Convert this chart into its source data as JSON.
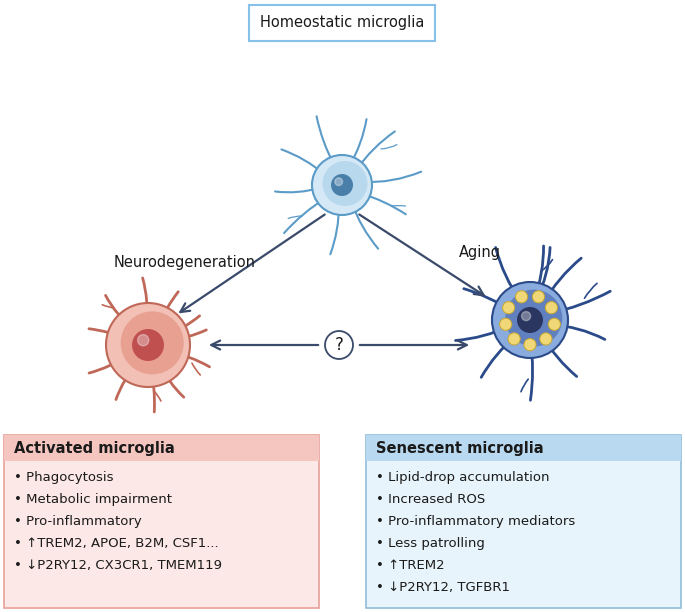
{
  "bg_color": "#ffffff",
  "title_box_text": "Homeostatic microglia",
  "left_label": "Neurodegeneration",
  "right_label": "Aging",
  "left_box_title": "Activated microglia",
  "left_box_bg": "#fce8e6",
  "left_box_header_bg": "#f5c6c0",
  "left_box_border": "#e8a09a",
  "left_box_items": [
    "• Phagocytosis",
    "• Metabolic impairment",
    "• Pro-inflammatory",
    "• ↑TREM2, APOE, B2M, CSF1...",
    "• ↓P2RY12, CX3CR1, TMEM119"
  ],
  "right_box_title": "Senescent microglia",
  "right_box_bg": "#e8f4fb",
  "right_box_header_bg": "#b8d9ef",
  "right_box_border": "#90bdd9",
  "right_box_items": [
    "• Lipid-drop accumulation",
    "• Increased ROS",
    "• Pro-inflammatory mediators",
    "• Less patrolling",
    "• ↑TREM2",
    "• ↓P2RY12, TGFBR1"
  ],
  "homeostatic_body_color": "#b8d8ee",
  "homeostatic_branch_color": "#5b9bc8",
  "homeostatic_nucleus_color": "#4a7faa",
  "activated_body_color": "#e8a090",
  "activated_body_light": "#f2c0b5",
  "activated_branch_color": "#c06858",
  "activated_nucleus_color": "#c05050",
  "senescent_body_color": "#6080c0",
  "senescent_body_light": "#8aabdd",
  "senescent_branch_color": "#2a4a8a",
  "senescent_nucleus_color": "#2a3560",
  "senescent_lipid_color": "#f0d878",
  "arrow_color": "#3a4a6a",
  "text_color": "#1a1a1a"
}
